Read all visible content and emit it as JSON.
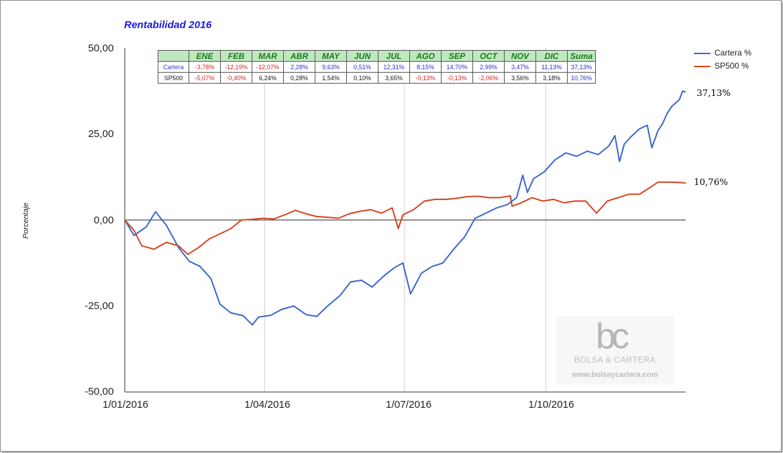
{
  "chart_data": {
    "type": "line",
    "title": "Rentabilidad 2016",
    "ylabel": "Porcentaje",
    "ylim": [
      -50,
      50
    ],
    "yticks": [
      "50,00",
      "25,00",
      "0,00",
      "-25,00",
      "-50,00"
    ],
    "xticks": [
      "1/01/2016",
      "1/04/2016",
      "1/07/2016",
      "1/10/2016"
    ],
    "grid": "vertical",
    "legend_position": "right",
    "series": [
      {
        "name": "Cartera %",
        "color": "#3a66d1",
        "end_label": "37,13%",
        "points": [
          [
            "2016-01-01",
            0
          ],
          [
            "2016-01-07",
            -4.5
          ],
          [
            "2016-01-15",
            -2.0
          ],
          [
            "2016-01-21",
            2.4
          ],
          [
            "2016-01-28",
            -1.5
          ],
          [
            "2016-02-05",
            -8.0
          ],
          [
            "2016-02-12",
            -12.0
          ],
          [
            "2016-02-19",
            -13.5
          ],
          [
            "2016-02-26",
            -17.0
          ],
          [
            "2016-03-03",
            -24.5
          ],
          [
            "2016-03-10",
            -27.0
          ],
          [
            "2016-03-18",
            -27.8
          ],
          [
            "2016-03-24",
            -30.5
          ],
          [
            "2016-03-28",
            -28.2
          ],
          [
            "2016-04-05",
            -27.7
          ],
          [
            "2016-04-12",
            -26.0
          ],
          [
            "2016-04-20",
            -25.0
          ],
          [
            "2016-04-28",
            -27.5
          ],
          [
            "2016-05-05",
            -28.0
          ],
          [
            "2016-05-12",
            -25.0
          ],
          [
            "2016-05-20",
            -22.0
          ],
          [
            "2016-05-27",
            -18.0
          ],
          [
            "2016-06-03",
            -17.5
          ],
          [
            "2016-06-10",
            -19.5
          ],
          [
            "2016-06-17",
            -16.5
          ],
          [
            "2016-06-24",
            -14.0
          ],
          [
            "2016-06-30",
            -12.5
          ],
          [
            "2016-07-05",
            -21.5
          ],
          [
            "2016-07-12",
            -15.5
          ],
          [
            "2016-07-19",
            -13.5
          ],
          [
            "2016-07-26",
            -12.5
          ],
          [
            "2016-08-02",
            -8.5
          ],
          [
            "2016-08-09",
            -5.0
          ],
          [
            "2016-08-16",
            0.5
          ],
          [
            "2016-08-23",
            2.0
          ],
          [
            "2016-08-30",
            3.5
          ],
          [
            "2016-09-06",
            4.5
          ],
          [
            "2016-09-12",
            6.5
          ],
          [
            "2016-09-16",
            13.0
          ],
          [
            "2016-09-19",
            8.0
          ],
          [
            "2016-09-23",
            12.0
          ],
          [
            "2016-09-30",
            14.0
          ],
          [
            "2016-10-07",
            17.5
          ],
          [
            "2016-10-14",
            19.5
          ],
          [
            "2016-10-21",
            18.5
          ],
          [
            "2016-10-28",
            20.0
          ],
          [
            "2016-11-04",
            19.0
          ],
          [
            "2016-11-11",
            21.5
          ],
          [
            "2016-11-15",
            24.5
          ],
          [
            "2016-11-18",
            17.0
          ],
          [
            "2016-11-21",
            22.0
          ],
          [
            "2016-11-25",
            24.0
          ],
          [
            "2016-12-01",
            26.5
          ],
          [
            "2016-12-06",
            27.5
          ],
          [
            "2016-12-09",
            21.0
          ],
          [
            "2016-12-13",
            26.0
          ],
          [
            "2016-12-16",
            28.0
          ],
          [
            "2016-12-19",
            31.0
          ],
          [
            "2016-12-22",
            33.0
          ],
          [
            "2016-12-27",
            35.0
          ],
          [
            "2016-12-29",
            37.5
          ],
          [
            "2016-12-31",
            37.13
          ]
        ]
      },
      {
        "name": "SP500 %",
        "color": "#d4441f",
        "end_label": "10,76%",
        "points": [
          [
            "2016-01-01",
            0
          ],
          [
            "2016-01-07",
            -3.0
          ],
          [
            "2016-01-12",
            -7.5
          ],
          [
            "2016-01-20",
            -8.5
          ],
          [
            "2016-01-28",
            -6.5
          ],
          [
            "2016-02-05",
            -7.5
          ],
          [
            "2016-02-11",
            -10.0
          ],
          [
            "2016-02-18",
            -8.0
          ],
          [
            "2016-02-25",
            -5.5
          ],
          [
            "2016-03-03",
            -4.0
          ],
          [
            "2016-03-10",
            -2.5
          ],
          [
            "2016-03-17",
            0.0
          ],
          [
            "2016-03-24",
            0.2
          ],
          [
            "2016-03-31",
            0.5
          ],
          [
            "2016-04-07",
            0.3
          ],
          [
            "2016-04-14",
            1.5
          ],
          [
            "2016-04-21",
            2.8
          ],
          [
            "2016-04-28",
            1.8
          ],
          [
            "2016-05-05",
            1.0
          ],
          [
            "2016-05-12",
            0.8
          ],
          [
            "2016-05-19",
            0.5
          ],
          [
            "2016-05-26",
            1.8
          ],
          [
            "2016-06-02",
            2.5
          ],
          [
            "2016-06-09",
            3.0
          ],
          [
            "2016-06-16",
            2.0
          ],
          [
            "2016-06-23",
            3.5
          ],
          [
            "2016-06-27",
            -2.5
          ],
          [
            "2016-06-30",
            1.5
          ],
          [
            "2016-07-07",
            3.0
          ],
          [
            "2016-07-14",
            5.5
          ],
          [
            "2016-07-21",
            6.0
          ],
          [
            "2016-07-28",
            6.0
          ],
          [
            "2016-08-04",
            6.3
          ],
          [
            "2016-08-11",
            6.8
          ],
          [
            "2016-08-18",
            6.9
          ],
          [
            "2016-08-25",
            6.5
          ],
          [
            "2016-09-01",
            6.5
          ],
          [
            "2016-09-08",
            7.0
          ],
          [
            "2016-09-09",
            4.0
          ],
          [
            "2016-09-15",
            5.0
          ],
          [
            "2016-09-22",
            6.5
          ],
          [
            "2016-09-29",
            5.5
          ],
          [
            "2016-10-06",
            6.0
          ],
          [
            "2016-10-13",
            5.0
          ],
          [
            "2016-10-20",
            5.5
          ],
          [
            "2016-10-27",
            5.5
          ],
          [
            "2016-11-03",
            2.0
          ],
          [
            "2016-11-10",
            5.5
          ],
          [
            "2016-11-17",
            6.5
          ],
          [
            "2016-11-24",
            7.5
          ],
          [
            "2016-12-01",
            7.5
          ],
          [
            "2016-12-08",
            9.5
          ],
          [
            "2016-12-13",
            11.0
          ],
          [
            "2016-12-20",
            11.0
          ],
          [
            "2016-12-27",
            10.9
          ],
          [
            "2016-12-31",
            10.76
          ]
        ]
      }
    ]
  },
  "table": {
    "headers": [
      "",
      "ENE",
      "FEB",
      "MAR",
      "ABR",
      "MAY",
      "JUN",
      "JUL",
      "AGO",
      "SEP",
      "OCT",
      "NOV",
      "DIC",
      "Suma"
    ],
    "rows": [
      {
        "label": "Cartera",
        "label_color": "#3a3ad0",
        "cells": [
          {
            "v": "-3,78%",
            "c": "#d02020"
          },
          {
            "v": "-12,19%",
            "c": "#d02020"
          },
          {
            "v": "-12,07%",
            "c": "#d02020"
          },
          {
            "v": "2,28%",
            "c": "#2a2ad0"
          },
          {
            "v": "9,63%",
            "c": "#2a2ad0"
          },
          {
            "v": "0,51%",
            "c": "#2a2ad0"
          },
          {
            "v": "12,31%",
            "c": "#2a2ad0"
          },
          {
            "v": "8,15%",
            "c": "#2a2ad0"
          },
          {
            "v": "14,70%",
            "c": "#2a2ad0"
          },
          {
            "v": "2,99%",
            "c": "#2a2ad0"
          },
          {
            "v": "3,47%",
            "c": "#2a2ad0"
          },
          {
            "v": "11,13%",
            "c": "#2a2ad0"
          },
          {
            "v": "37,13%",
            "c": "#2a2ad0"
          }
        ]
      },
      {
        "label": "SP500",
        "label_color": "#111111",
        "cells": [
          {
            "v": "-5,07%",
            "c": "#d02020"
          },
          {
            "v": "-0,40%",
            "c": "#d02020"
          },
          {
            "v": "6,24%",
            "c": "#111111"
          },
          {
            "v": "0,28%",
            "c": "#111111"
          },
          {
            "v": "1,54%",
            "c": "#111111"
          },
          {
            "v": "0,10%",
            "c": "#111111"
          },
          {
            "v": "3,65%",
            "c": "#111111"
          },
          {
            "v": "-0,13%",
            "c": "#d02020"
          },
          {
            "v": "-0,13%",
            "c": "#d02020"
          },
          {
            "v": "-2,06%",
            "c": "#d02020"
          },
          {
            "v": "3,56%",
            "c": "#111111"
          },
          {
            "v": "3,18%",
            "c": "#111111"
          },
          {
            "v": "10,76%",
            "c": "#2a2ad0"
          }
        ]
      }
    ]
  },
  "watermark": {
    "logo": "bc",
    "name": "BOLSA & CARTERA",
    "url": "www.bolsaycartera.com"
  }
}
